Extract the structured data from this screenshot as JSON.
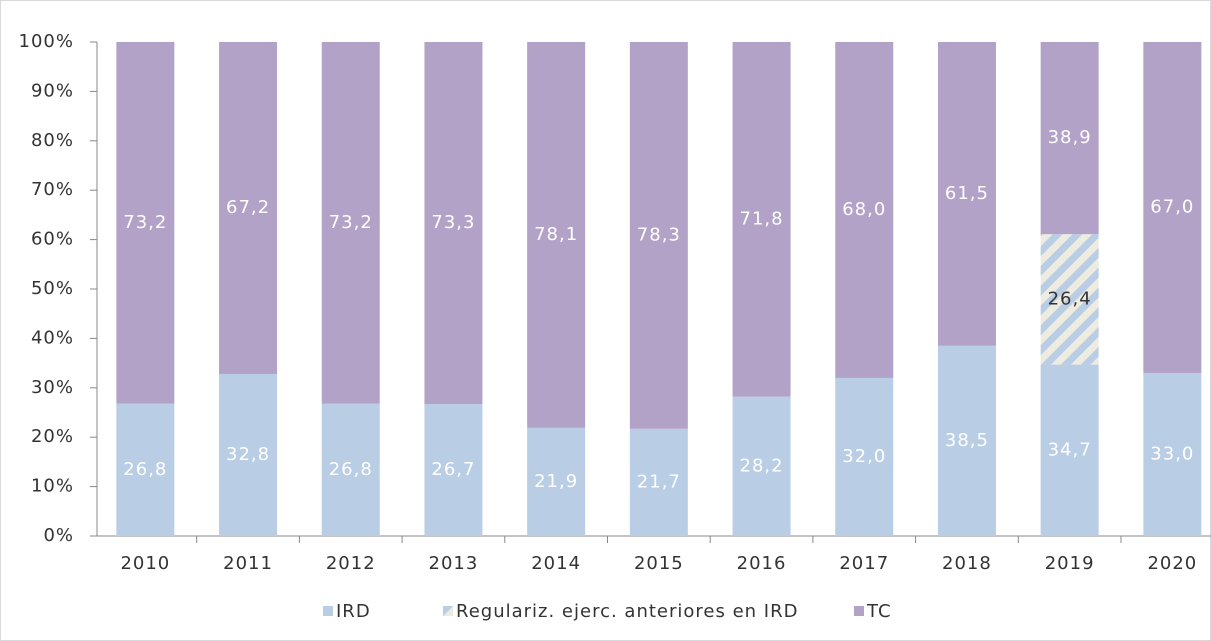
{
  "chart_data": {
    "type": "stacked_bar",
    "categories": [
      "2010",
      "2011",
      "2012",
      "2013",
      "2014",
      "2015",
      "2016",
      "2017",
      "2018",
      "2019",
      "2020"
    ],
    "series": [
      {
        "name": "IRD",
        "color": "#b9cde5",
        "values": [
          26.8,
          32.8,
          26.8,
          26.7,
          21.9,
          21.7,
          28.2,
          32.0,
          38.5,
          34.7,
          33.0
        ],
        "value_labels": [
          "26,8",
          "32,8",
          "26,8",
          "26,7",
          "21,9",
          "21,7",
          "28,2",
          "32,0",
          "38,5",
          "34,7",
          "33,0"
        ]
      },
      {
        "name": "Regulariz. ejerc. anteriores en IRD",
        "color": "#b9cde5",
        "pattern": "hatched",
        "values": [
          null,
          null,
          null,
          null,
          null,
          null,
          null,
          null,
          null,
          26.4,
          null
        ],
        "value_labels": [
          null,
          null,
          null,
          null,
          null,
          null,
          null,
          null,
          null,
          "26,4",
          null
        ]
      },
      {
        "name": "TC",
        "color": "#b3a2c7",
        "values": [
          73.2,
          67.2,
          73.2,
          73.3,
          78.1,
          78.3,
          71.8,
          68.0,
          61.5,
          38.9,
          67.0
        ],
        "value_labels": [
          "73,2",
          "67,2",
          "73,2",
          "73,3",
          "78,1",
          "78,3",
          "71,8",
          "68,0",
          "61,5",
          "38,9",
          "67,0"
        ]
      }
    ],
    "ylim": [
      0,
      100
    ],
    "yticks": [
      {
        "value": 0,
        "label": "0%"
      },
      {
        "value": 10,
        "label": "10%"
      },
      {
        "value": 20,
        "label": "20%"
      },
      {
        "value": 30,
        "label": "30%"
      },
      {
        "value": 40,
        "label": "40%"
      },
      {
        "value": 50,
        "label": "50%"
      },
      {
        "value": 60,
        "label": "60%"
      },
      {
        "value": 70,
        "label": "70%"
      },
      {
        "value": 80,
        "label": "80%"
      },
      {
        "value": 90,
        "label": "90%"
      },
      {
        "value": 100,
        "label": "100%"
      }
    ],
    "legend": "bottom"
  }
}
